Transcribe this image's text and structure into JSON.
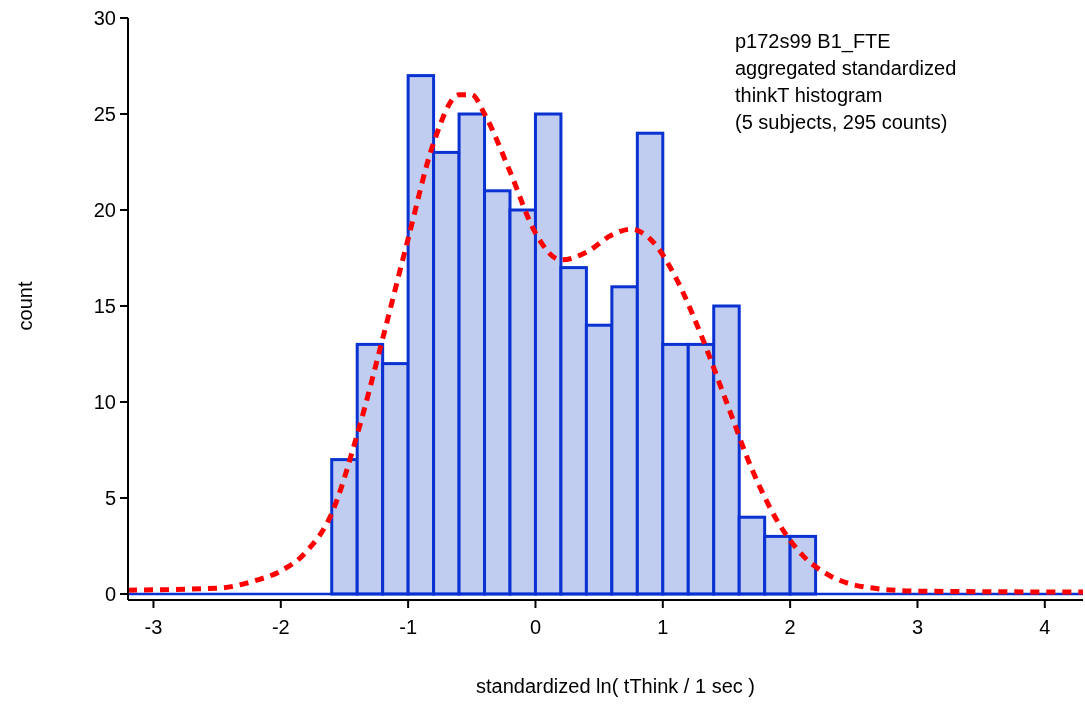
{
  "chart_data": {
    "type": "histogram",
    "xlabel": "standardized ln( tThink / 1 sec )",
    "ylabel": "count",
    "annotations": [
      "p172s99 B1_FTE",
      "aggregated standardized",
      "thinkT histogram",
      "(5 subjects, 295 counts)"
    ],
    "bins": [
      -1.6,
      -1.4,
      -1.2,
      -1.0,
      -0.8,
      -0.6,
      -0.4,
      -0.2,
      0.0,
      0.2,
      0.4,
      0.6,
      0.8,
      1.0,
      1.2,
      1.4,
      1.6,
      1.8,
      2.0,
      2.2
    ],
    "series": [
      {
        "color": "#c0cdf0",
        "values": [
          7,
          13,
          12,
          27,
          23,
          25,
          21,
          20,
          25,
          17,
          14,
          16,
          24,
          13,
          13,
          15,
          4,
          3,
          3
        ]
      },
      {
        "type": "line",
        "color": "#ff0000",
        "line_style": "dashed",
        "x": [
          -3.2,
          -2.5,
          -2.2,
          -2.0,
          -1.8,
          -1.6,
          -1.4,
          -1.2,
          -1.0,
          -0.8,
          -0.6,
          -0.5,
          -0.4,
          -0.2,
          0.0,
          0.2,
          0.4,
          0.6,
          0.75,
          0.9,
          1.1,
          1.3,
          1.5,
          1.7,
          1.9,
          2.1,
          2.3,
          2.6,
          3.0,
          4.3
        ],
        "values": [
          0.2,
          0.3,
          0.7,
          1.2,
          2.2,
          4.2,
          8.3,
          13.3,
          18.5,
          23.5,
          26,
          26,
          25,
          22,
          18.8,
          17.4,
          17.8,
          18.7,
          19,
          18.5,
          16.5,
          13.5,
          10,
          6.5,
          3.8,
          2,
          1,
          0.35,
          0.15,
          0.1
        ]
      }
    ],
    "xlim": [
      -3.2,
      4.3
    ],
    "xticks": [
      -3,
      -2,
      -1,
      0,
      1,
      2,
      3,
      4
    ],
    "ylim": [
      0,
      30
    ],
    "yticks": [
      0,
      5,
      10,
      15,
      20,
      25,
      30
    ],
    "grid": false
  }
}
